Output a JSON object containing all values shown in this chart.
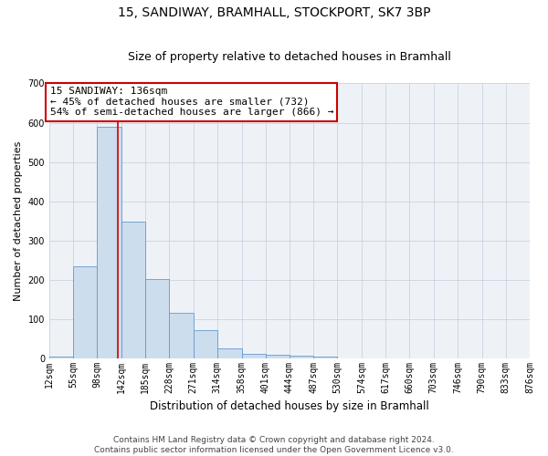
{
  "title": "15, SANDIWAY, BRAMHALL, STOCKPORT, SK7 3BP",
  "subtitle": "Size of property relative to detached houses in Bramhall",
  "xlabel": "Distribution of detached houses by size in Bramhall",
  "ylabel": "Number of detached properties",
  "bin_edges": [
    12,
    55,
    98,
    142,
    185,
    228,
    271,
    314,
    358,
    401,
    444,
    487,
    530,
    574,
    617,
    660,
    703,
    746,
    790,
    833,
    876
  ],
  "bar_heights": [
    5,
    235,
    590,
    348,
    203,
    116,
    73,
    25,
    13,
    9,
    7,
    5,
    0,
    0,
    0,
    0,
    0,
    0,
    0,
    0
  ],
  "bar_color": "#ccdded",
  "bar_edge_color": "#6699cc",
  "grid_color": "#c8d4e0",
  "background_color": "#eef2f7",
  "vline_x": 136,
  "vline_color": "#cc0000",
  "annotation_line1": "15 SANDIWAY: 136sqm",
  "annotation_line2": "← 45% of detached houses are smaller (732)",
  "annotation_line3": "54% of semi-detached houses are larger (866) →",
  "annotation_box_color": "#ffffff",
  "annotation_box_edge": "#cc0000",
  "footer": "Contains HM Land Registry data © Crown copyright and database right 2024.\nContains public sector information licensed under the Open Government Licence v3.0.",
  "ylim": [
    0,
    700
  ],
  "tick_labels": [
    "12sqm",
    "55sqm",
    "98sqm",
    "142sqm",
    "185sqm",
    "228sqm",
    "271sqm",
    "314sqm",
    "358sqm",
    "401sqm",
    "444sqm",
    "487sqm",
    "530sqm",
    "574sqm",
    "617sqm",
    "660sqm",
    "703sqm",
    "746sqm",
    "790sqm",
    "833sqm",
    "876sqm"
  ],
  "title_fontsize": 10,
  "subtitle_fontsize": 9,
  "xlabel_fontsize": 8.5,
  "ylabel_fontsize": 8,
  "tick_fontsize": 7,
  "annotation_fontsize": 8,
  "footer_fontsize": 6.5,
  "yticks": [
    0,
    100,
    200,
    300,
    400,
    500,
    600,
    700
  ]
}
